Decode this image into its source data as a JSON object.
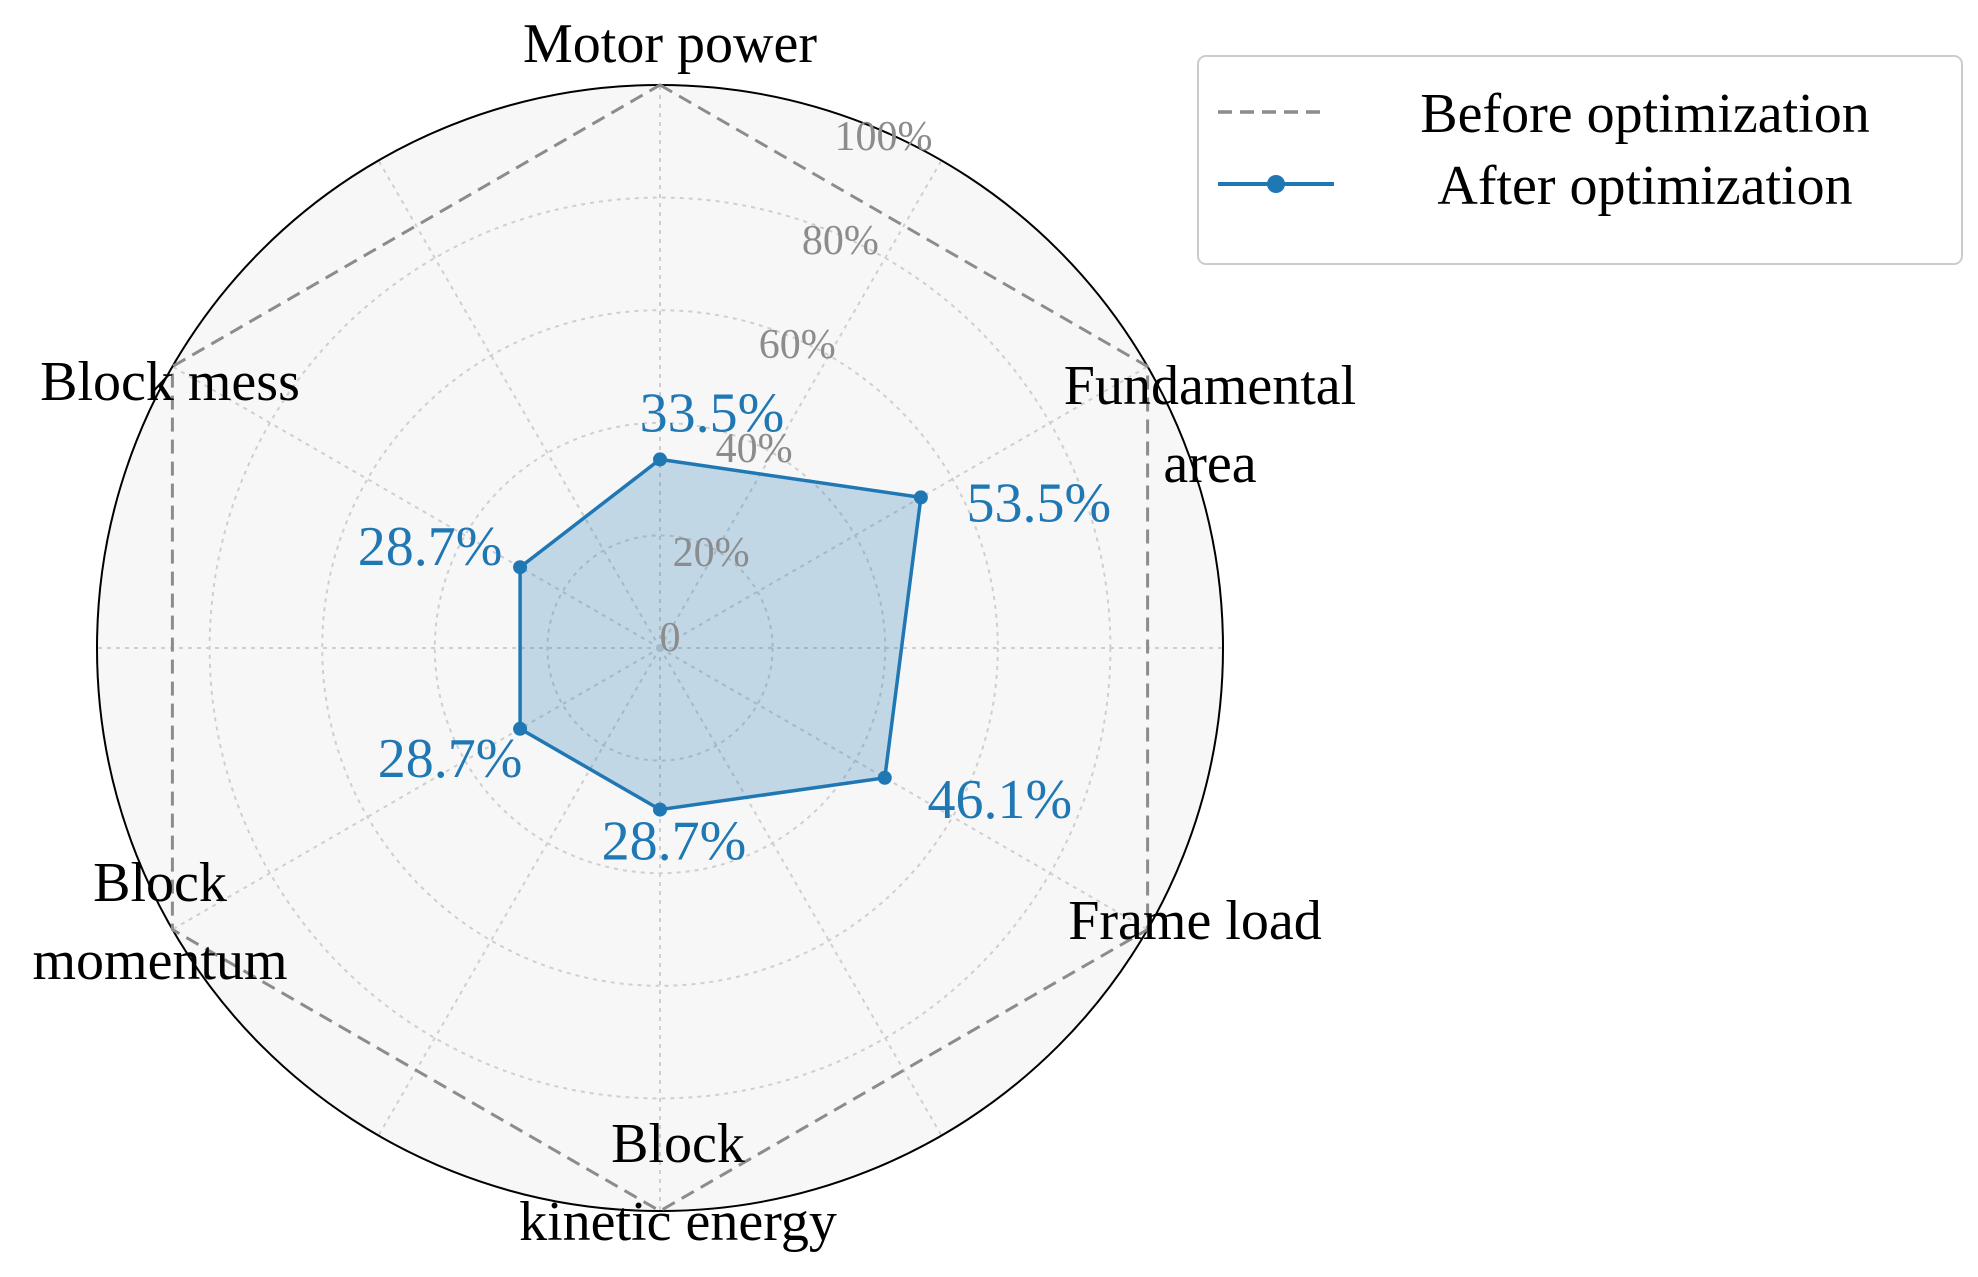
{
  "chart_data": {
    "type": "radar",
    "categories": [
      [
        "Motor power"
      ],
      [
        "Fundamental",
        "area"
      ],
      [
        "Frame load"
      ],
      [
        "Block",
        "kinetic energy"
      ],
      [
        "Block",
        "momentum"
      ],
      [
        "Block mess"
      ]
    ],
    "r_ticks": [
      0,
      20,
      40,
      60,
      80,
      100
    ],
    "r_tick_labels": [
      "0",
      "20%",
      "40%",
      "60%",
      "80%",
      "100%"
    ],
    "rlim": [
      0,
      100
    ],
    "grid": true,
    "legend_position": "top-right",
    "series": [
      {
        "name": "Before optimization",
        "values": [
          100,
          100,
          100,
          100,
          100,
          100
        ],
        "style": "dashed",
        "color": "#8c8c8c"
      },
      {
        "name": "After optimization",
        "values": [
          33.5,
          53.5,
          46.1,
          28.7,
          28.7,
          28.7
        ],
        "labels": [
          "33.5%",
          "53.5%",
          "46.1%",
          "28.7%",
          "28.7%",
          "28.7%"
        ],
        "style": "solid-markers-filled",
        "color": "#1f77b4"
      }
    ]
  },
  "colors": {
    "plot_background": "#f7f7f7",
    "grid": "#cfcfcf",
    "tick": "#8c8c8c",
    "after_fill": "#1f77b4",
    "before_line": "#8c8c8c"
  }
}
